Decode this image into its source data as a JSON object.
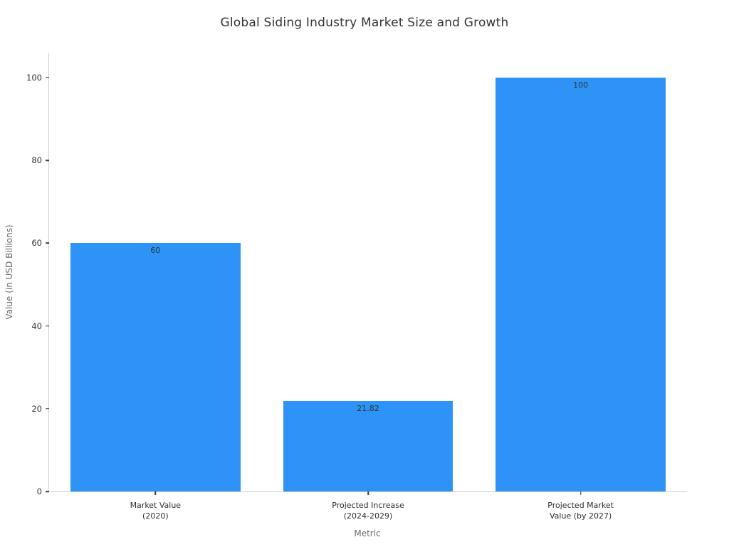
{
  "chart_data": {
    "type": "bar",
    "title": "Global Siding Industry Market Size and Growth",
    "xlabel": "Metric",
    "ylabel": "Value (in USD Billions)",
    "categories": [
      "Market Value (2020)",
      "Projected Increase (2024-2029)",
      "Projected Market Value (by 2027)"
    ],
    "category_lines": [
      [
        "Market Value",
        "(2020)"
      ],
      [
        "Projected Increase",
        "(2024-2029)"
      ],
      [
        "Projected Market",
        "Value (by 2027)"
      ]
    ],
    "values": [
      60,
      21.82,
      100
    ],
    "bar_labels": [
      "60",
      "21.82",
      "100"
    ],
    "yticks": [
      0,
      20,
      40,
      60,
      80,
      100
    ],
    "ylim": [
      0,
      106
    ],
    "grid": false,
    "legend_position": "none",
    "bar_color": "#2e93f7",
    "spine_color": "#cfcfcf",
    "tick_color": "#3a3a3a",
    "text_color": "#333333",
    "axis_label_color": "#6b6b6b"
  }
}
